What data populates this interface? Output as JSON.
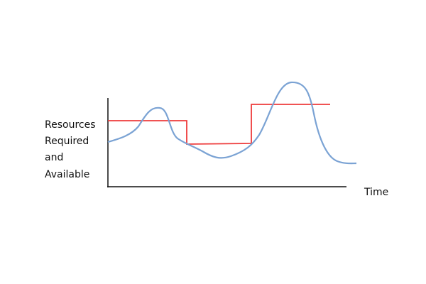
{
  "axis_labels": {
    "y": [
      "Resources",
      "Required",
      "and",
      "Available"
    ],
    "x": "Time"
  }
}
